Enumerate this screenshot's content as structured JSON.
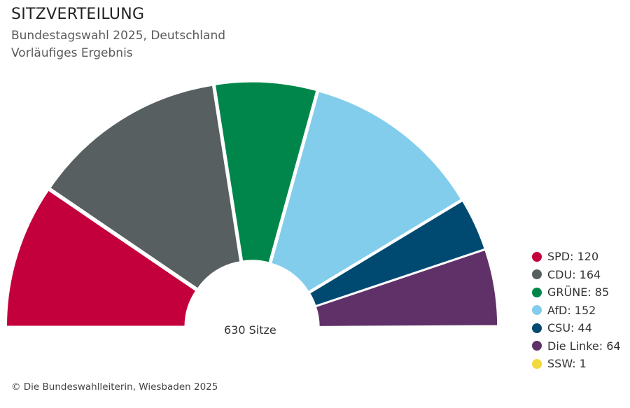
{
  "header": {
    "title": "SITZVERTEILUNG",
    "subtitle": "Bundestagswahl 2025, Deutschland",
    "note": "Vorläufiges Ergebnis"
  },
  "chart_data": {
    "type": "pie",
    "variant": "semicircle-parliament",
    "title": "SITZVERTEILUNG",
    "subtitle": "Bundestagswahl 2025, Deutschland",
    "total_label": "630 Sitze",
    "total": 630,
    "legend_position": "right-bottom",
    "categories": [
      "SPD",
      "CDU",
      "GRÜNE",
      "AfD",
      "CSU",
      "Die Linke",
      "SSW"
    ],
    "values": [
      120,
      164,
      85,
      152,
      44,
      64,
      1
    ],
    "colors": [
      "#c4003c",
      "#575f60",
      "#00864a",
      "#83cdec",
      "#004a72",
      "#5f3168",
      "#f3d93b"
    ],
    "legend": [
      {
        "label": "SPD: 120",
        "color": "#c4003c"
      },
      {
        "label": "CDU: 164",
        "color": "#575f60"
      },
      {
        "label": "GRÜNE: 85",
        "color": "#00864a"
      },
      {
        "label": "AfD: 152",
        "color": "#83cdec"
      },
      {
        "label": "CSU: 44",
        "color": "#004a72"
      },
      {
        "label": "Die Linke: 64",
        "color": "#5f3168"
      },
      {
        "label": "SSW: 1",
        "color": "#f3d93b"
      }
    ]
  },
  "footer": {
    "credit": "© Die Bundeswahlleiterin, Wiesbaden 2025"
  }
}
